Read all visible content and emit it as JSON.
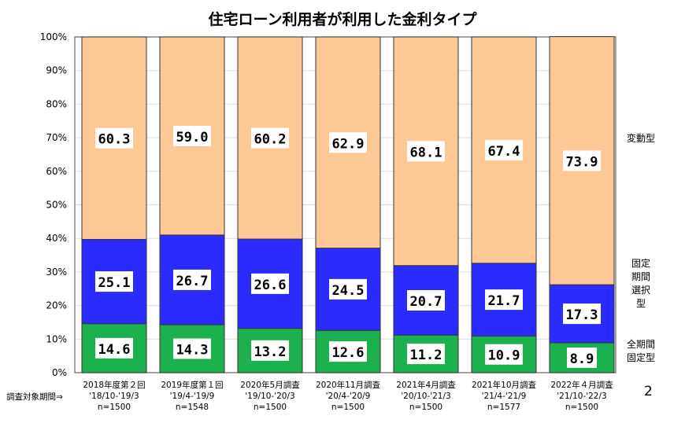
{
  "chart_data": {
    "type": "bar",
    "stacked": true,
    "title": "住宅ローン利用者が利用した金利タイプ",
    "categories": [
      {
        "survey": "2018年度第２回",
        "period": "'18/10-'19/3",
        "n": "n=1500"
      },
      {
        "survey": "2019年度第１回",
        "period": "'19/4-'19/9",
        "n": "n=1548"
      },
      {
        "survey": "2020年5月調査",
        "period": "'19/10-'20/3",
        "n": "n=1500"
      },
      {
        "survey": "2020年11月調査",
        "period": "'20/4-'20/9",
        "n": "n=1500"
      },
      {
        "survey": "2021年4月調査",
        "period": "'20/10-'21/3",
        "n": "n=1500"
      },
      {
        "survey": "2021年10月調査",
        "period": "'21/4-'21/9",
        "n": "n=1577"
      },
      {
        "survey": "2022年４月調査",
        "period": "'21/10-'22/3",
        "n": "n=1500"
      }
    ],
    "period_label": "調査対象期間⇒",
    "series": [
      {
        "name": "全期間固定型",
        "legend_lines": [
          "全期間",
          "固定型"
        ],
        "color": "#1DB04E",
        "values": [
          14.6,
          14.3,
          13.2,
          12.6,
          11.2,
          10.9,
          8.9
        ]
      },
      {
        "name": "固定期間選択型",
        "legend_lines": [
          "固定",
          "期間",
          "選択",
          "型"
        ],
        "color": "#2B2BFF",
        "values": [
          25.1,
          26.7,
          26.6,
          24.5,
          20.7,
          21.7,
          17.3
        ]
      },
      {
        "name": "変動型",
        "legend_lines": [
          "変動型"
        ],
        "color": "#FCC896",
        "values": [
          60.3,
          59.0,
          60.2,
          62.9,
          68.1,
          67.4,
          73.9
        ]
      }
    ],
    "yticks": [
      "0%",
      "10%",
      "20%",
      "30%",
      "40%",
      "50%",
      "60%",
      "70%",
      "80%",
      "90%",
      "100%"
    ],
    "ylim": [
      0,
      100
    ],
    "grid": true,
    "legend_position": "right"
  },
  "page_number": "2"
}
